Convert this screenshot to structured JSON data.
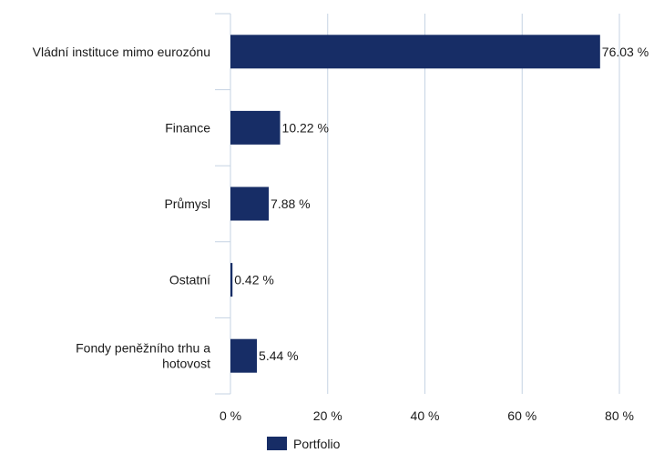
{
  "chart_data": {
    "type": "bar",
    "orientation": "horizontal",
    "categories": [
      [
        "Vládní instituce mimo eurozónu"
      ],
      [
        "Finance"
      ],
      [
        "Průmysl"
      ],
      [
        "Ostatní"
      ],
      [
        "Fondy peněžního trhu a",
        "hotovost"
      ]
    ],
    "series": [
      {
        "name": "Portfolio",
        "values": [
          76.03,
          10.22,
          7.88,
          0.42,
          5.44
        ],
        "labels": [
          "76.03 %",
          "10.22 %",
          "7.88 %",
          "0.42 %",
          "5.44 %"
        ],
        "color": "#172d66"
      }
    ],
    "xlim": [
      0,
      80
    ],
    "x_ticks": [
      0,
      20,
      40,
      60,
      80
    ],
    "x_tick_labels": [
      "0 %",
      "20 %",
      "40 %",
      "60 %",
      "80 %"
    ],
    "grid": true,
    "grid_color": "#c5d3e3",
    "legend": {
      "placement": "bottom",
      "entries": [
        "Portfolio"
      ]
    }
  }
}
